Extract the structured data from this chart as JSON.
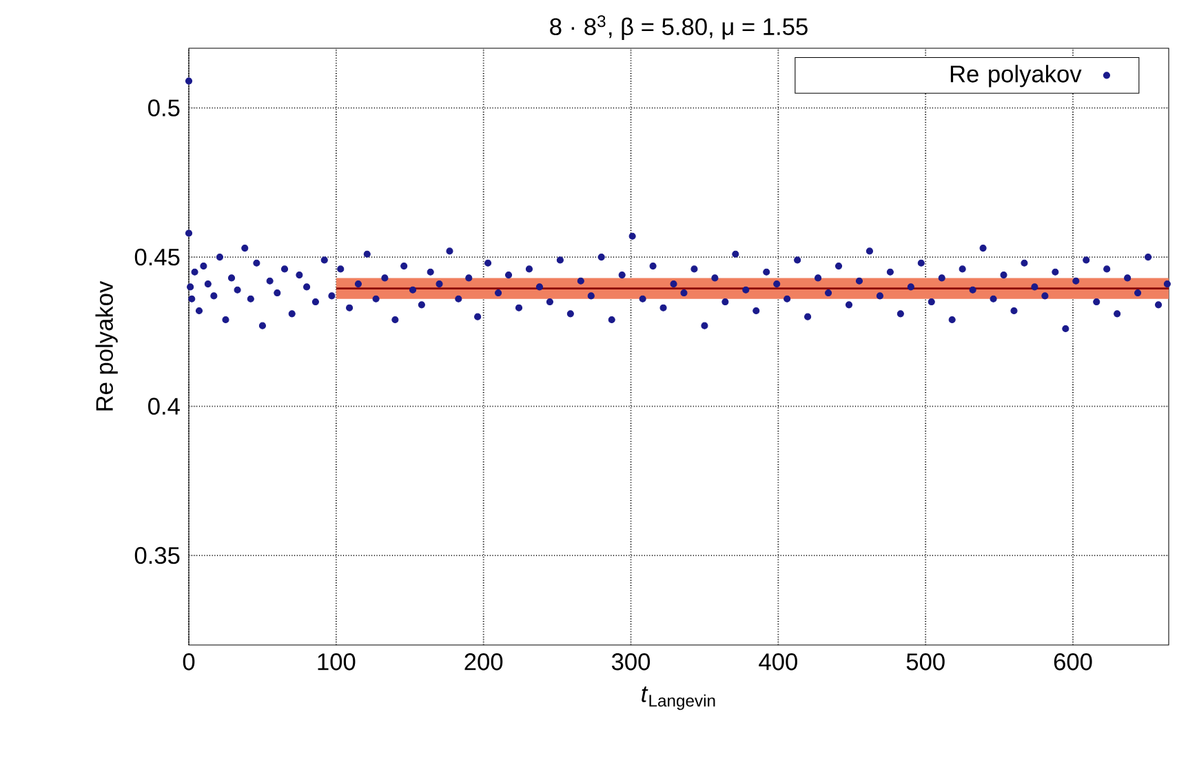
{
  "chart_data": {
    "type": "scatter",
    "title": "8 · 8$^{3}$, β = 5.80, μ = 1.55",
    "xlabel": "*t*$_{Langevin}$",
    "ylabel": "Re polyakov",
    "xlim": [
      0,
      665
    ],
    "ylim": [
      0.32,
      0.52
    ],
    "xticks": [
      0,
      100,
      200,
      300,
      400,
      500,
      600
    ],
    "yticks": [
      0.35,
      0.4,
      0.45,
      0.5
    ],
    "grid": true,
    "legend": "top right",
    "series": [
      {
        "type": "line",
        "marker": "none",
        "color": "#8b0000",
        "x": [
          100,
          665
        ],
        "values": [
          0.4395,
          0.4395
        ],
        "lower": [
          0.436,
          0.436
        ],
        "upper": [
          0.443,
          0.443
        ]
      },
      {
        "type": "scatter",
        "marker": "circle",
        "name": "Re polyakov",
        "color": "#1a1a8c",
        "x": [
          0,
          0,
          1,
          2,
          4,
          7,
          10,
          13,
          17,
          21,
          25,
          29,
          33,
          38,
          42,
          46,
          50,
          55,
          60,
          65,
          70,
          75,
          80,
          86,
          92,
          97,
          103,
          109,
          115,
          121,
          127,
          133,
          140,
          146,
          152,
          158,
          164,
          170,
          177,
          183,
          190,
          196,
          203,
          210,
          217,
          224,
          231,
          238,
          245,
          252,
          259,
          266,
          273,
          280,
          287,
          294,
          301,
          308,
          315,
          322,
          329,
          336,
          343,
          350,
          357,
          364,
          371,
          378,
          385,
          392,
          399,
          406,
          413,
          420,
          427,
          434,
          441,
          448,
          455,
          462,
          469,
          476,
          483,
          490,
          497,
          504,
          511,
          518,
          525,
          532,
          539,
          546,
          553,
          560,
          567,
          574,
          581,
          588,
          595,
          602,
          609,
          616,
          623,
          630,
          637,
          644,
          651,
          658,
          664
        ],
        "values": [
          0.509,
          0.458,
          0.44,
          0.436,
          0.445,
          0.432,
          0.447,
          0.441,
          0.437,
          0.45,
          0.429,
          0.443,
          0.439,
          0.453,
          0.436,
          0.448,
          0.427,
          0.442,
          0.438,
          0.446,
          0.431,
          0.444,
          0.44,
          0.435,
          0.449,
          0.437,
          0.446,
          0.433,
          0.441,
          0.451,
          0.436,
          0.443,
          0.429,
          0.447,
          0.439,
          0.434,
          0.445,
          0.441,
          0.452,
          0.436,
          0.443,
          0.43,
          0.448,
          0.438,
          0.444,
          0.433,
          0.446,
          0.44,
          0.435,
          0.449,
          0.431,
          0.442,
          0.437,
          0.45,
          0.429,
          0.444,
          0.457,
          0.436,
          0.447,
          0.433,
          0.441,
          0.438,
          0.446,
          0.427,
          0.443,
          0.435,
          0.451,
          0.439,
          0.432,
          0.445,
          0.441,
          0.436,
          0.449,
          0.43,
          0.443,
          0.438,
          0.447,
          0.434,
          0.442,
          0.452,
          0.437,
          0.445,
          0.431,
          0.44,
          0.448,
          0.435,
          0.443,
          0.429,
          0.446,
          0.439,
          0.453,
          0.436,
          0.444,
          0.432,
          0.448,
          0.44,
          0.437,
          0.445,
          0.426,
          0.442,
          0.449,
          0.435,
          0.446,
          0.431,
          0.443,
          0.438,
          0.45,
          0.434,
          0.441
        ]
      }
    ]
  }
}
